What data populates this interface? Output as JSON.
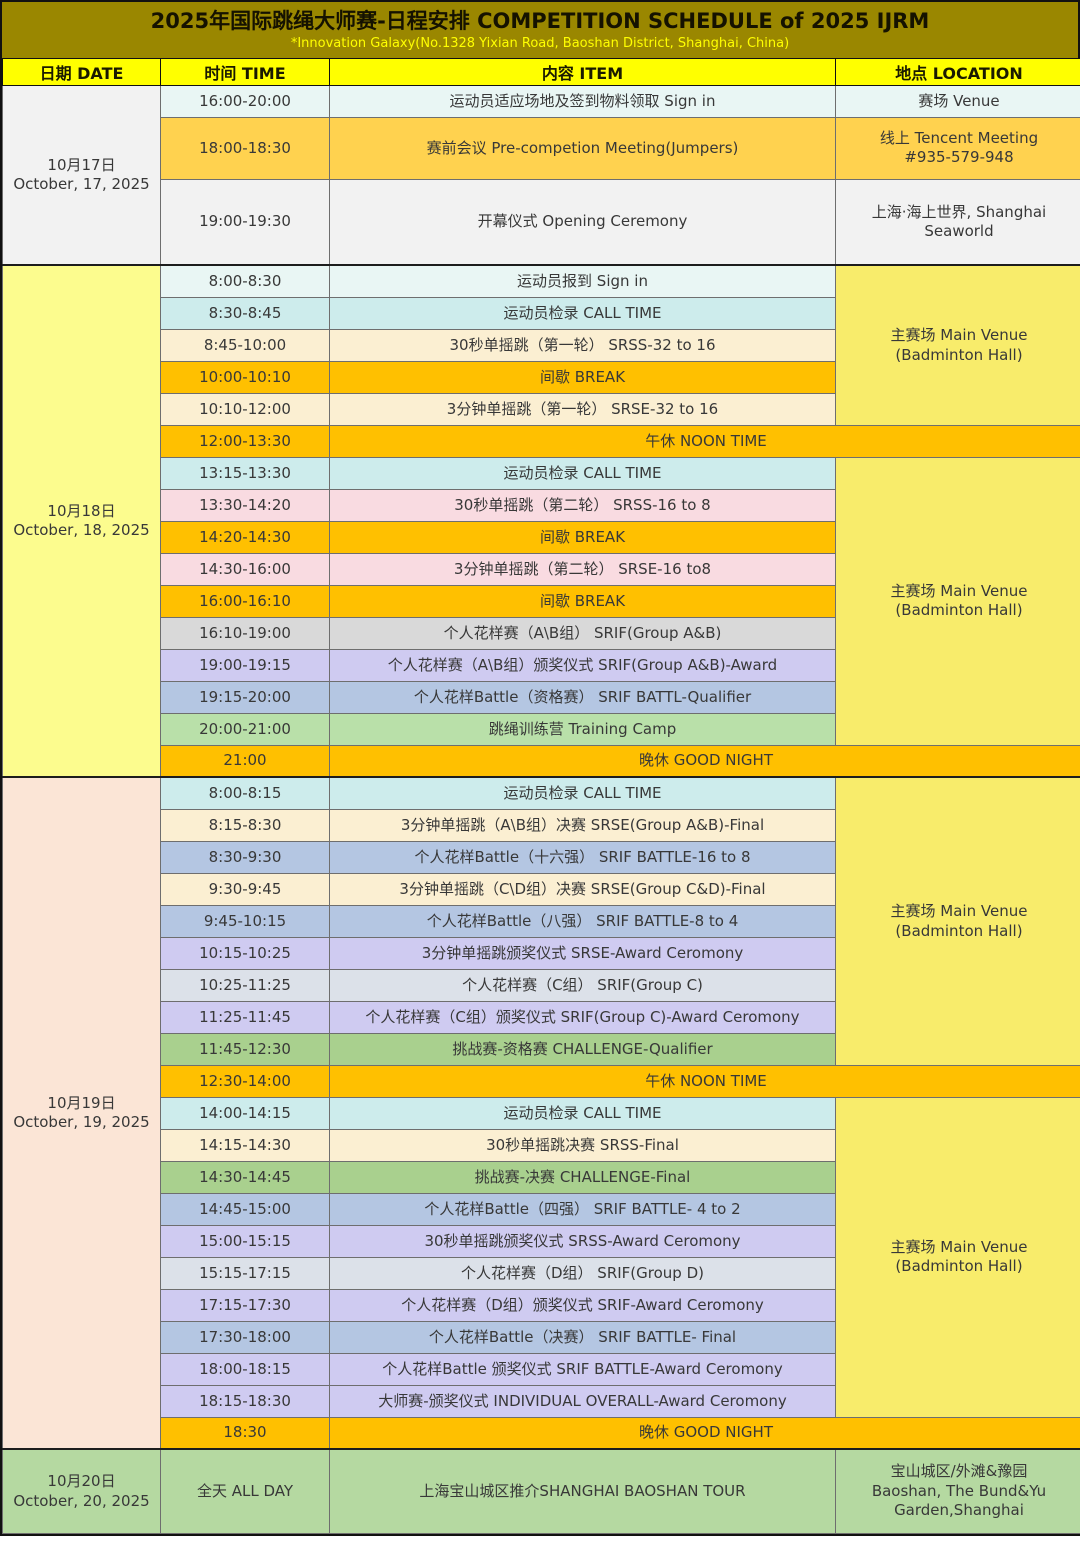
{
  "header": {
    "title": "2025年国际跳绳大师赛-日程安排 COMPETITION SCHEDULE of 2025 IJRM",
    "subtitle": "*Innovation Galaxy(No.1328 Yixian Road, Baoshan District, Shanghai, China)"
  },
  "columns": {
    "date": "日期 DATE",
    "time": "时间 TIME",
    "item": "内容 ITEM",
    "location": "地点 LOCATION"
  },
  "palette": {
    "title_bar_bg": "#9A8700",
    "title_text": "#151200",
    "subtitle_text": "#FFFF00",
    "column_header_bg": "#FFFF00",
    "pale_cyan": "#E9F6F4",
    "cyan": "#CDECEC",
    "gold": "#FFD24F",
    "light_gray": "#F2F2F2",
    "gray": "#D9D9D9",
    "gray_blue": "#DCE1E9",
    "cream": "#FBEFD2",
    "orange": "#FFC000",
    "pink": "#F9DBE1",
    "lavender": "#CFCBF1",
    "blue": "#B4C6E2",
    "green": "#A9D08E",
    "green_light": "#B9E0A9",
    "day1_bg": "#F2F2F2",
    "day2_bg": "#FCFC8E",
    "day3_bg": "#FBE5D6",
    "day4_bg": "#B5D9A1",
    "venue_yellow": "#F8EC6B"
  },
  "days": [
    {
      "date_cn": "10月17日",
      "date_en": "October, 17, 2025",
      "rows": [
        {
          "time": "16:00-20:00",
          "item": "运动员适应场地及签到物料领取 Sign in",
          "loc": [
            "赛场 Venue"
          ]
        },
        {
          "time": "18:00-18:30",
          "item": "赛前会议  Pre-competion Meeting(Jumpers)",
          "loc": [
            "线上 Tencent Meeting",
            "#935-579-948"
          ]
        },
        {
          "time": "19:00-19:30",
          "item": "开幕仪式 Opening Ceremony",
          "loc": [
            "上海·海上世界, Shanghai",
            "Seaworld"
          ]
        }
      ]
    },
    {
      "date_cn": "10月18日",
      "date_en": "October, 18, 2025",
      "venue1": [
        "主赛场 Main Venue",
        "(Badminton Hall)"
      ],
      "venue2": [
        "主赛场 Main Venue",
        "(Badminton Hall)"
      ],
      "rows": [
        {
          "time": "8:00-8:30",
          "item": "运动员报到 Sign in"
        },
        {
          "time": "8:30-8:45",
          "item": "运动员检录 CALL TIME"
        },
        {
          "time": "8:45-10:00",
          "item": "30秒单摇跳（第一轮） SRSS-32 to 16"
        },
        {
          "time": "10:00-10:10",
          "item": "间歇 BREAK"
        },
        {
          "time": "10:10-12:00",
          "item": "3分钟单摇跳（第一轮） SRSE-32 to 16"
        },
        {
          "time": "12:00-13:30",
          "item": "午休 NOON TIME"
        },
        {
          "time": "13:15-13:30",
          "item": "运动员检录 CALL TIME"
        },
        {
          "time": "13:30-14:20",
          "item": "30秒单摇跳（第二轮） SRSS-16 to 8"
        },
        {
          "time": "14:20-14:30",
          "item": "间歇 BREAK"
        },
        {
          "time": "14:30-16:00",
          "item": "3分钟单摇跳（第二轮） SRSE-16 to8"
        },
        {
          "time": "16:00-16:10",
          "item": "间歇 BREAK"
        },
        {
          "time": "16:10-19:00",
          "item": "个人花样赛（A\\B组） SRIF(Group A&B)"
        },
        {
          "time": "19:00-19:15",
          "item": "个人花样赛（A\\B组）颁奖仪式 SRIF(Group A&B)-Award"
        },
        {
          "time": "19:15-20:00",
          "item": "个人花样Battle（资格赛） SRIF BATTL-Qualifier"
        },
        {
          "time": "20:00-21:00",
          "item": "跳绳训练营 Training Camp"
        },
        {
          "time": "21:00",
          "item": "晚休 GOOD NIGHT"
        }
      ]
    },
    {
      "date_cn": "10月19日",
      "date_en": "October, 19, 2025",
      "venue1": [
        "主赛场 Main Venue",
        "(Badminton Hall)"
      ],
      "venue2": [
        "主赛场 Main Venue",
        "(Badminton Hall)"
      ],
      "rows": [
        {
          "time": "8:00-8:15",
          "item": "运动员检录 CALL TIME"
        },
        {
          "time": "8:15-8:30",
          "item": "3分钟单摇跳（A\\B组）决赛 SRSE(Group A&B)-Final"
        },
        {
          "time": "8:30-9:30",
          "item": "个人花样Battle（十六强） SRIF BATTLE-16 to 8"
        },
        {
          "time": "9:30-9:45",
          "item": "3分钟单摇跳（C\\D组）决赛  SRSE(Group C&D)-Final"
        },
        {
          "time": "9:45-10:15",
          "item": "个人花样Battle（八强） SRIF BATTLE-8 to 4"
        },
        {
          "time": "10:15-10:25",
          "item": "3分钟单摇跳颁奖仪式 SRSE-Award Ceromony"
        },
        {
          "time": "10:25-11:25",
          "item": "个人花样赛（C组） SRIF(Group C)"
        },
        {
          "time": "11:25-11:45",
          "item": "个人花样赛（C组）颁奖仪式 SRIF(Group C)-Award Ceromony"
        },
        {
          "time": "11:45-12:30",
          "item": "挑战赛-资格赛 CHALLENGE-Qualifier"
        },
        {
          "time": "12:30-14:00",
          "item": "午休 NOON TIME"
        },
        {
          "time": "14:00-14:15",
          "item": "运动员检录 CALL TIME"
        },
        {
          "time": "14:15-14:30",
          "item": "30秒单摇跳决赛 SRSS-Final"
        },
        {
          "time": "14:30-14:45",
          "item": "挑战赛-决赛 CHALLENGE-Final"
        },
        {
          "time": "14:45-15:00",
          "item": "个人花样Battle（四强） SRIF BATTLE- 4 to 2"
        },
        {
          "time": "15:00-15:15",
          "item": "30秒单摇跳颁奖仪式 SRSS-Award Ceromony"
        },
        {
          "time": "15:15-17:15",
          "item": "个人花样赛（D组） SRIF(Group D)"
        },
        {
          "time": "17:15-17:30",
          "item": "个人花样赛（D组）颁奖仪式 SRIF-Award Ceromony"
        },
        {
          "time": "17:30-18:00",
          "item": "个人花样Battle（决赛） SRIF BATTLE- Final"
        },
        {
          "time": "18:00-18:15",
          "item": "个人花样Battle 颁奖仪式 SRIF BATTLE-Award Ceromony"
        },
        {
          "time": "18:15-18:30",
          "item": "大师赛-颁奖仪式 INDIVIDUAL OVERALL-Award Ceromony"
        },
        {
          "time": "18:30",
          "item": "晚休 GOOD NIGHT"
        }
      ]
    },
    {
      "date_cn": "10月20日",
      "date_en": "October, 20, 2025",
      "rows": [
        {
          "time": "全天 ALL DAY",
          "item": "上海宝山城区推介SHANGHAI BAOSHAN TOUR",
          "loc": [
            "宝山城区/外滩&豫园",
            "Baoshan, The Bund&Yu",
            "Garden,Shanghai"
          ]
        }
      ]
    }
  ]
}
